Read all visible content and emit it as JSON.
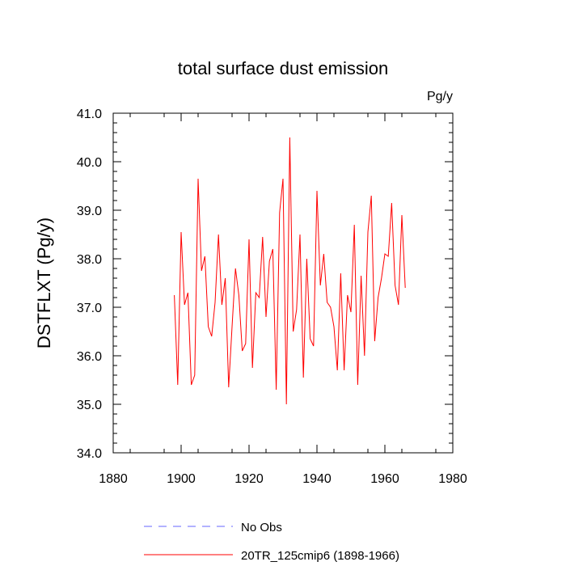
{
  "chart_data": {
    "type": "line",
    "title": "total surface dust emission",
    "units": "Pg/y",
    "xlabel": "",
    "ylabel": "DSTFLXT  (Pg/y)",
    "xlim": [
      1880,
      1980
    ],
    "ylim": [
      34.0,
      41.0
    ],
    "x_ticks": [
      1880,
      1900,
      1920,
      1940,
      1960,
      1980
    ],
    "x_tick_labels": [
      "1880",
      "1900",
      "1920",
      "1940",
      "1960",
      "1980"
    ],
    "y_ticks": [
      34.0,
      35.0,
      36.0,
      37.0,
      38.0,
      39.0,
      40.0,
      41.0
    ],
    "y_tick_labels": [
      "34.0",
      "35.0",
      "36.0",
      "37.0",
      "38.0",
      "39.0",
      "40.0",
      "41.0"
    ],
    "legend": [
      {
        "label": "No Obs",
        "color": "#6666ff",
        "style": "dashed"
      },
      {
        "label": "20TR_125cmip6 (1898-1966)",
        "color": "#ff0000",
        "style": "solid"
      }
    ],
    "series": [
      {
        "name": "20TR_125cmip6 (1898-1966)",
        "color": "#ff0000",
        "x": [
          1898,
          1899,
          1900,
          1901,
          1902,
          1903,
          1904,
          1905,
          1906,
          1907,
          1908,
          1909,
          1910,
          1911,
          1912,
          1913,
          1914,
          1915,
          1916,
          1917,
          1918,
          1919,
          1920,
          1921,
          1922,
          1923,
          1924,
          1925,
          1926,
          1927,
          1928,
          1929,
          1930,
          1931,
          1932,
          1933,
          1934,
          1935,
          1936,
          1937,
          1938,
          1939,
          1940,
          1941,
          1942,
          1943,
          1944,
          1945,
          1946,
          1947,
          1948,
          1949,
          1950,
          1951,
          1952,
          1953,
          1954,
          1955,
          1956,
          1957,
          1958,
          1959,
          1960,
          1961,
          1962,
          1963,
          1964,
          1965,
          1966
        ],
        "values": [
          37.25,
          35.4,
          38.55,
          37.05,
          37.3,
          35.4,
          35.6,
          39.65,
          37.75,
          38.05,
          36.6,
          36.4,
          37.1,
          38.5,
          37.05,
          37.6,
          35.35,
          36.6,
          37.8,
          37.25,
          36.1,
          36.25,
          38.4,
          35.75,
          37.3,
          37.2,
          38.45,
          36.8,
          37.95,
          38.2,
          35.3,
          38.95,
          39.65,
          35.0,
          40.5,
          36.5,
          36.95,
          38.5,
          35.55,
          38.0,
          36.35,
          36.2,
          39.4,
          37.45,
          38.1,
          37.1,
          37.0,
          36.6,
          35.7,
          37.7,
          35.7,
          37.25,
          36.9,
          38.7,
          35.4,
          37.65,
          36.0,
          38.55,
          39.3,
          36.3,
          37.2,
          37.6,
          38.1,
          38.05,
          39.15,
          37.45,
          37.05,
          38.9,
          37.4
        ]
      }
    ]
  }
}
